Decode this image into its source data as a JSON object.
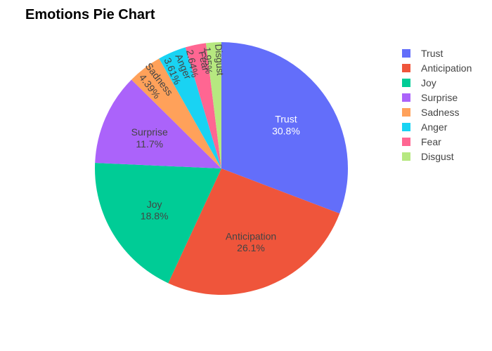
{
  "chart_data": {
    "type": "pie",
    "title": "Emotions Pie Chart",
    "legend_position": "right",
    "slices": [
      {
        "label": "Trust",
        "percent": 30.8,
        "percent_text": "30.8%",
        "color": "#636EFA"
      },
      {
        "label": "Anticipation",
        "percent": 26.1,
        "percent_text": "26.1%",
        "color": "#EF553B"
      },
      {
        "label": "Joy",
        "percent": 18.8,
        "percent_text": "18.8%",
        "color": "#00CC96"
      },
      {
        "label": "Surprise",
        "percent": 11.7,
        "percent_text": "11.7%",
        "color": "#AB63FA"
      },
      {
        "label": "Sadness",
        "percent": 4.39,
        "percent_text": "4.39%",
        "color": "#FFA15A"
      },
      {
        "label": "Anger",
        "percent": 3.61,
        "percent_text": "3.61%",
        "color": "#19D3F3"
      },
      {
        "label": "Fear",
        "percent": 2.64,
        "percent_text": "2.64%",
        "color": "#FF6692"
      },
      {
        "label": "Disgust",
        "percent": 1.95,
        "percent_text": "1.95%",
        "color": "#B6E880"
      }
    ]
  }
}
